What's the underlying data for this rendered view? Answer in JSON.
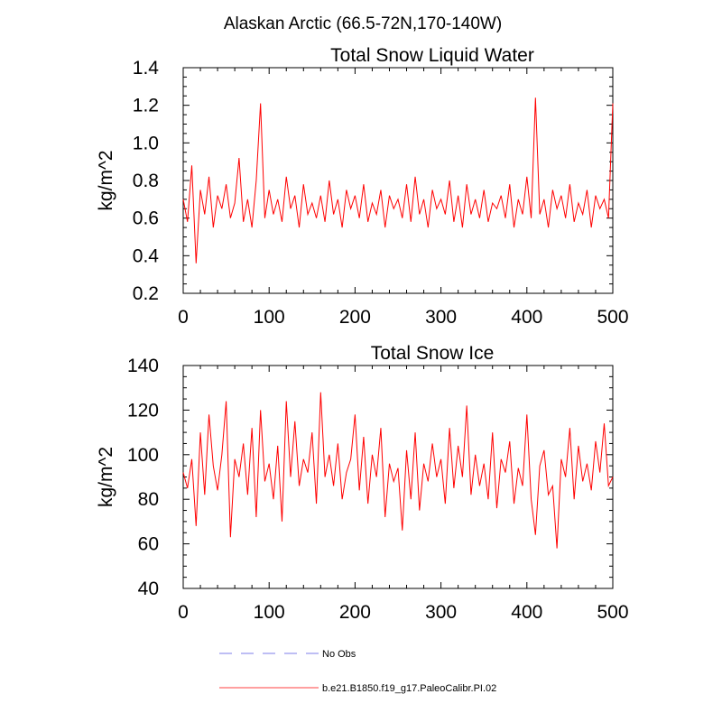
{
  "figure": {
    "title": "Alaskan Arctic (66.5-72N,170-140W)"
  },
  "legend": {
    "placement": "bottom",
    "entries": [
      {
        "label": "No Obs",
        "color": "#a9a9f0",
        "style": "dashed"
      },
      {
        "label": "b.e21.B1850.f19_g17.PaleoCalibr.PI.02",
        "color": "#ff8080",
        "style": "solid"
      }
    ]
  },
  "chart_data": [
    {
      "type": "line",
      "title": "Total Snow Liquid Water",
      "xlabel": "",
      "ylabel": "kg/m^2",
      "xlim": [
        0,
        500
      ],
      "ylim": [
        0.2,
        1.4
      ],
      "xticks": [
        0,
        100,
        200,
        300,
        400,
        500
      ],
      "yticks": [
        0.2,
        0.4,
        0.6,
        0.8,
        1.0,
        1.2,
        1.4
      ],
      "ytick_labels": [
        "0.2",
        "0.4",
        "0.6",
        "0.8",
        "1.0",
        "1.2",
        "1.4"
      ],
      "grid": false,
      "series": [
        {
          "name": "b.e21.B1850.f19_g17.PaleoCalibr.PI.02",
          "color": "#ff0000",
          "x_start": 0,
          "x_step": 5,
          "values": [
            0.7,
            0.58,
            0.88,
            0.36,
            0.75,
            0.62,
            0.82,
            0.55,
            0.72,
            0.65,
            0.78,
            0.6,
            0.68,
            0.92,
            0.58,
            0.7,
            0.55,
            0.8,
            1.21,
            0.6,
            0.75,
            0.62,
            0.7,
            0.58,
            0.82,
            0.65,
            0.72,
            0.55,
            0.78,
            0.62,
            0.68,
            0.6,
            0.72,
            0.58,
            0.8,
            0.62,
            0.7,
            0.55,
            0.75,
            0.65,
            0.72,
            0.6,
            0.78,
            0.58,
            0.68,
            0.62,
            0.75,
            0.55,
            0.72,
            0.65,
            0.7,
            0.6,
            0.78,
            0.58,
            0.82,
            0.62,
            0.7,
            0.55,
            0.75,
            0.65,
            0.7,
            0.62,
            0.8,
            0.58,
            0.72,
            0.55,
            0.78,
            0.62,
            0.7,
            0.6,
            0.75,
            0.58,
            0.68,
            0.65,
            0.72,
            0.6,
            0.78,
            0.55,
            0.7,
            0.62,
            0.82,
            0.6,
            1.24,
            0.62,
            0.7,
            0.55,
            0.75,
            0.65,
            0.72,
            0.6,
            0.78,
            0.58,
            0.68,
            0.62,
            0.75,
            0.55,
            0.72,
            0.65,
            0.7,
            0.6,
            1.21
          ]
        }
      ]
    },
    {
      "type": "line",
      "title": "Total Snow Ice",
      "xlabel": "",
      "ylabel": "kg/m^2",
      "xlim": [
        0,
        500
      ],
      "ylim": [
        40,
        140
      ],
      "xticks": [
        0,
        100,
        200,
        300,
        400,
        500
      ],
      "yticks": [
        40,
        60,
        80,
        100,
        120,
        140
      ],
      "ytick_labels": [
        "40",
        "60",
        "80",
        "100",
        "120",
        "140"
      ],
      "grid": false,
      "series": [
        {
          "name": "b.e21.B1850.f19_g17.PaleoCalibr.PI.02",
          "color": "#ff0000",
          "x_start": 0,
          "x_step": 5,
          "values": [
            92,
            85,
            98,
            68,
            110,
            82,
            118,
            95,
            84,
            100,
            124,
            63,
            98,
            90,
            105,
            82,
            112,
            72,
            120,
            88,
            96,
            80,
            104,
            70,
            124,
            90,
            115,
            86,
            98,
            92,
            110,
            78,
            128,
            90,
            100,
            86,
            105,
            80,
            92,
            98,
            118,
            84,
            108,
            78,
            100,
            90,
            112,
            72,
            96,
            88,
            94,
            66,
            102,
            80,
            110,
            75,
            96,
            88,
            105,
            90,
            98,
            78,
            112,
            85,
            104,
            90,
            122,
            82,
            100,
            86,
            96,
            80,
            110,
            76,
            98,
            92,
            106,
            78,
            94,
            86,
            118,
            80,
            64,
            95,
            102,
            82,
            86,
            58,
            98,
            90,
            112,
            80,
            104,
            88,
            96,
            84,
            106,
            92,
            114,
            86,
            90
          ]
        }
      ]
    }
  ]
}
